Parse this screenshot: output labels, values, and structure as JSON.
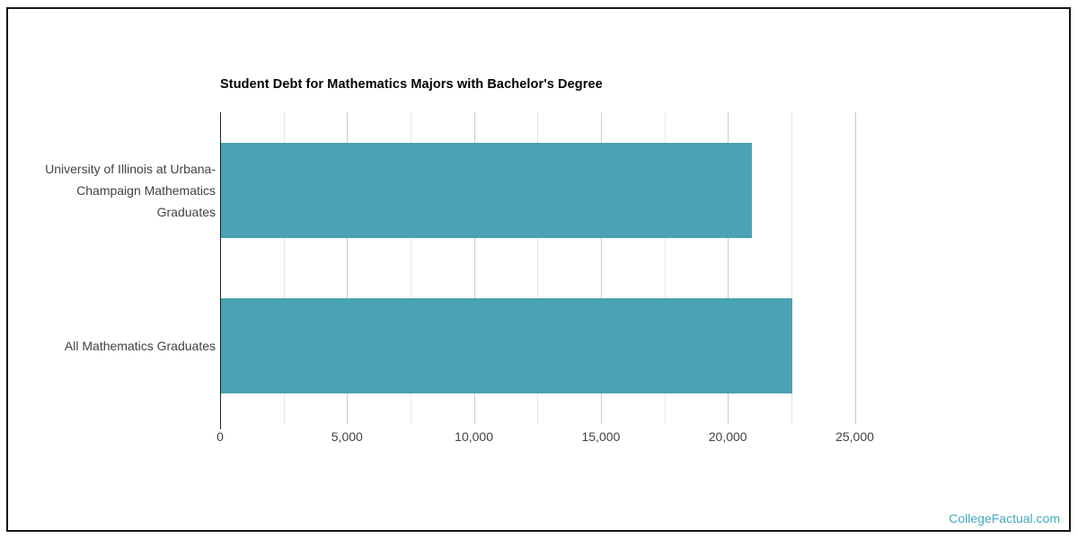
{
  "title": "Student Debt for Mathematics Majors with Bachelor's Degree",
  "watermark": {
    "text": "CollegeFactual.com",
    "color": "#44a8bd"
  },
  "colors": {
    "bar": "#4aa2b2",
    "axis_line": "#222222",
    "gridline_major": "#cccccc",
    "gridline_minor": "#e6e6e6",
    "label_text": "#424242",
    "title_text": "#000000"
  },
  "chart_data": {
    "type": "bar",
    "orientation": "horizontal",
    "title": "Student Debt for Mathematics Majors with Bachelor's Degree",
    "categories": [
      "University of Illinois at Urbana-Champaign Mathematics Graduates",
      "All Mathematics Graduates"
    ],
    "category_lines": [
      [
        "University of Illinois at Urbana-",
        "Champaign Mathematics",
        "Graduates"
      ],
      [
        "All Mathematics Graduates"
      ]
    ],
    "values": [
      20900,
      22500
    ],
    "xlabel": "",
    "ylabel": "",
    "bar_color": "#4aa2b2",
    "grid": true,
    "legend": false,
    "xaxis": {
      "min": 0,
      "max": 25000,
      "tick_step": 5000,
      "grid_step": 2500,
      "tick_values": [
        0,
        5000,
        10000,
        15000,
        20000,
        25000
      ],
      "tick_labels": [
        "0",
        "5,000",
        "10,000",
        "15,000",
        "20,000",
        "25,000"
      ]
    }
  }
}
